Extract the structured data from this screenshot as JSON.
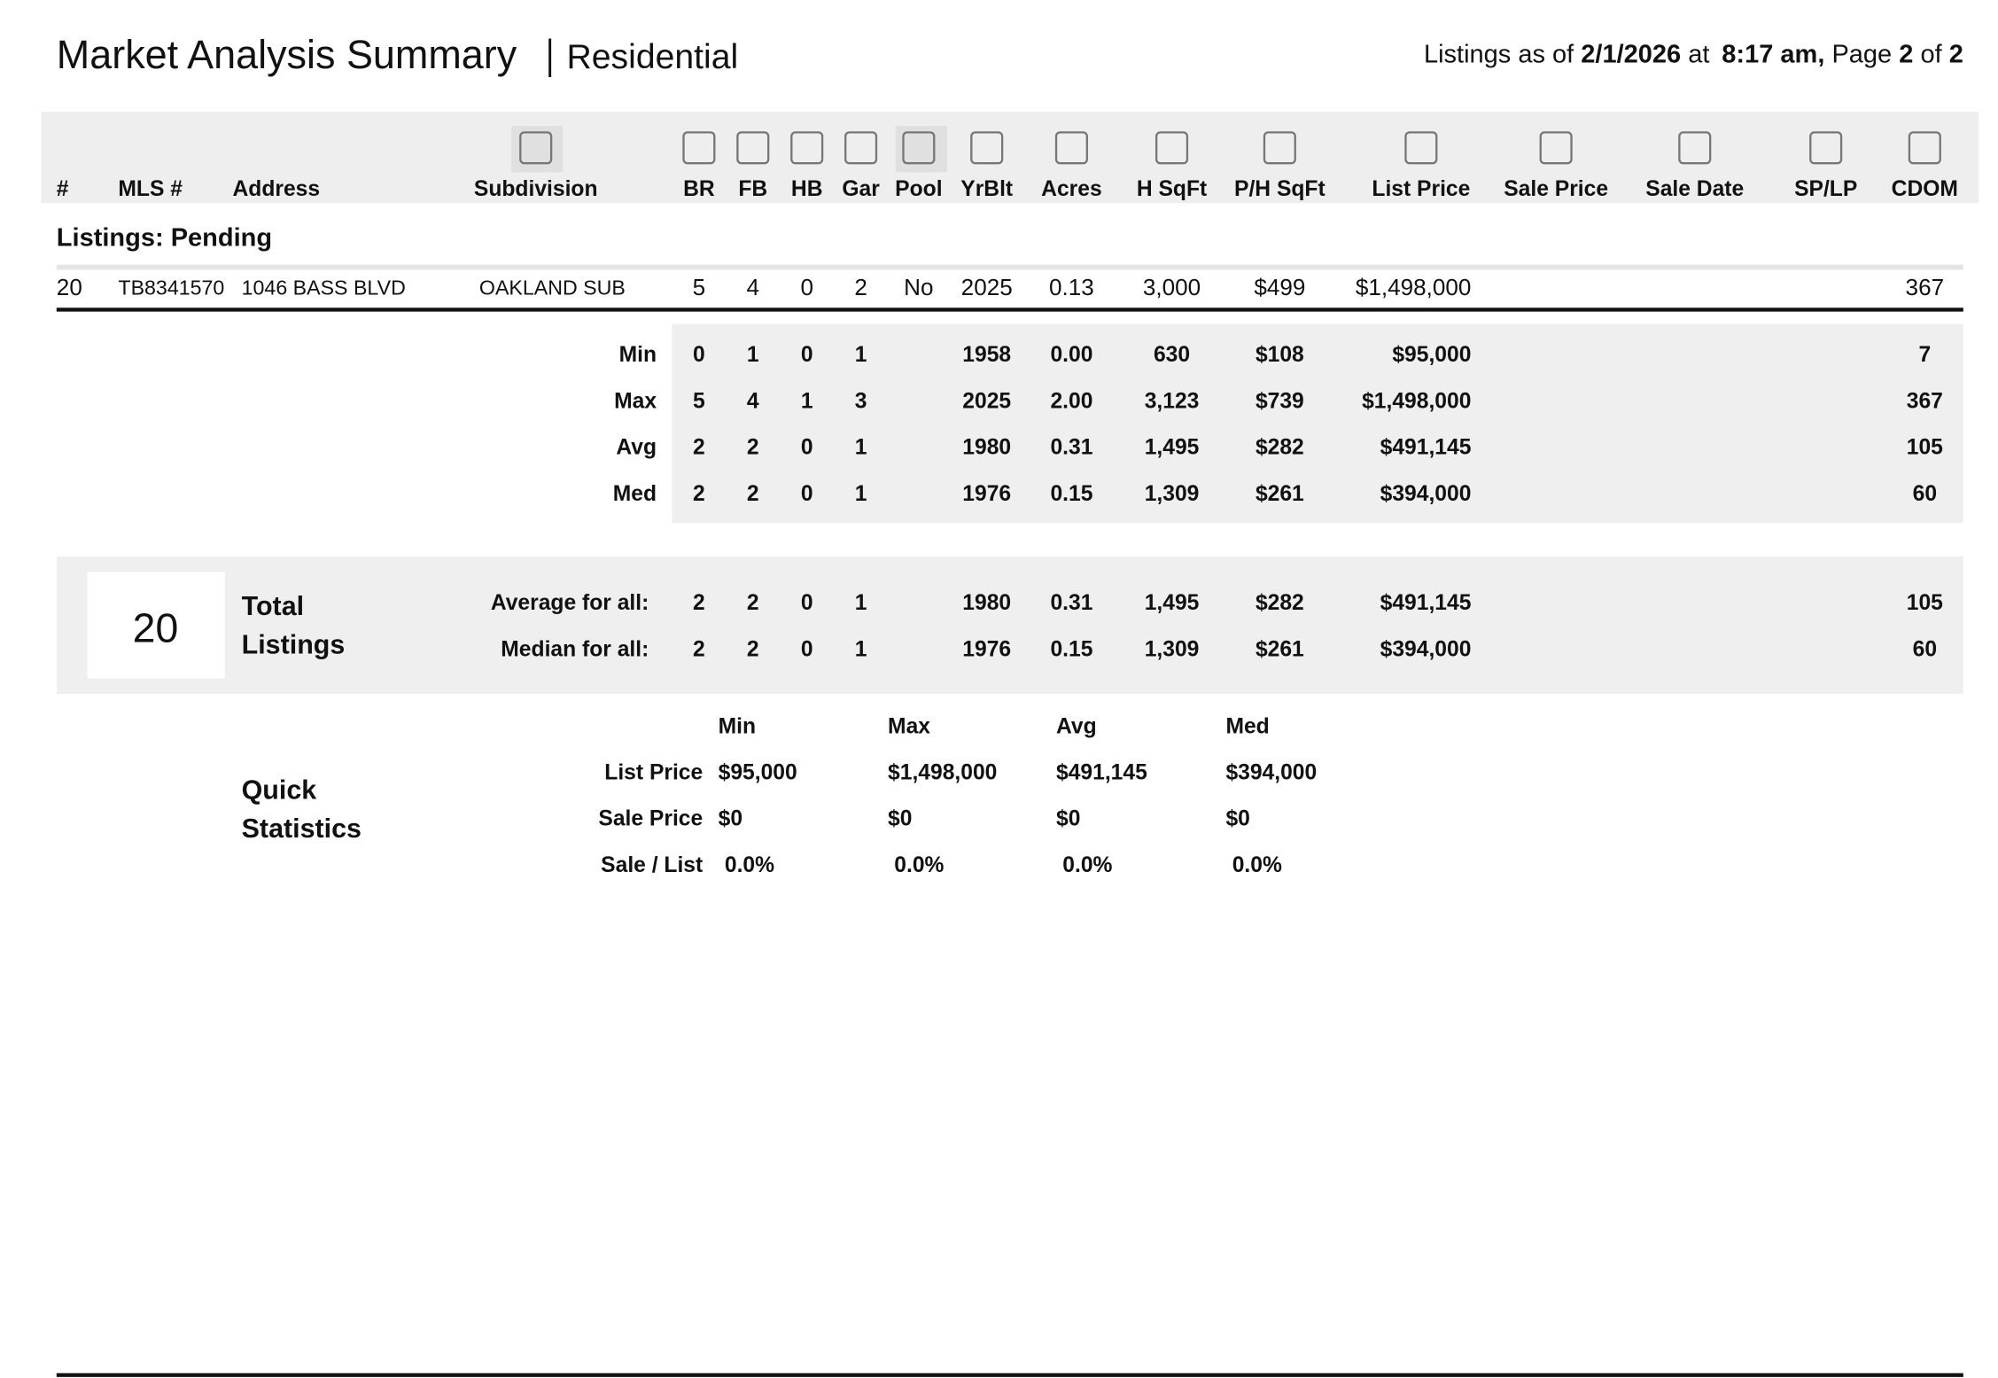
{
  "header": {
    "title": "Market Analysis Summary",
    "subtitle": "Residential",
    "as_of": {
      "prefix": "Listings as of",
      "date": "2/1/2026",
      "at": "at",
      "time": "8:17 am,",
      "page_word": "Page",
      "page": "2",
      "of": "of",
      "pages": "2"
    }
  },
  "table": {
    "columns": [
      "#",
      "MLS #",
      "Address",
      "Subdivision",
      "BR",
      "FB",
      "HB",
      "Gar",
      "Pool",
      "YrBlt",
      "Acres",
      "H SqFt",
      "P/H SqFt",
      "List Price",
      "Sale Price",
      "Sale Date",
      "SP/LP",
      "CDOM"
    ],
    "section": "Listings: Pending",
    "rows": [
      {
        "values": [
          "20",
          "TB8341570",
          "1046 BASS BLVD",
          "OAKLAND SUB",
          "5",
          "4",
          "0",
          "2",
          "No",
          "2025",
          "0.13",
          "3,000",
          "$499",
          "$1,498,000"
        ],
        "cdom": "367"
      }
    ],
    "stats": [
      {
        "label": "Min",
        "values": [
          "0",
          "1",
          "0",
          "1",
          "1958",
          "0.00",
          "630",
          "$108",
          "$95,000"
        ],
        "cdom": "7"
      },
      {
        "label": "Max",
        "values": [
          "5",
          "4",
          "1",
          "3",
          "2025",
          "2.00",
          "3,123",
          "$739",
          "$1,498,000"
        ],
        "cdom": "367"
      },
      {
        "label": "Avg",
        "values": [
          "2",
          "2",
          "0",
          "1",
          "1980",
          "0.31",
          "1,495",
          "$282",
          "$491,145"
        ],
        "cdom": "105"
      },
      {
        "label": "Med",
        "values": [
          "2",
          "2",
          "0",
          "1",
          "1976",
          "0.15",
          "1,309",
          "$261",
          "$394,000"
        ],
        "cdom": "60"
      }
    ]
  },
  "totals": {
    "count": "20",
    "label_lines": [
      "Total",
      "Listings"
    ],
    "rows": [
      {
        "label": "Average for all:",
        "values": [
          "2",
          "2",
          "0",
          "1",
          "1980",
          "0.31",
          "1,495",
          "$282",
          "$491,145"
        ],
        "cdom": "105"
      },
      {
        "label": "Median for all:",
        "values": [
          "2",
          "2",
          "0",
          "1",
          "1976",
          "0.15",
          "1,309",
          "$261",
          "$394,000"
        ],
        "cdom": "60"
      }
    ]
  },
  "quick_stats": {
    "title_lines": [
      "Quick",
      "Statistics"
    ],
    "headers": [
      "Min",
      "Max",
      "Avg",
      "Med"
    ],
    "rows": [
      {
        "label": "List Price",
        "values": [
          "$95,000",
          "$1,498,000",
          "$491,145",
          "$394,000"
        ]
      },
      {
        "label": "Sale Price",
        "values": [
          "$0",
          "$0",
          "$0",
          "$0"
        ]
      },
      {
        "label": "Sale / List",
        "values": [
          "0.0%",
          "0.0%",
          "0.0%",
          "0.0%"
        ]
      }
    ]
  }
}
